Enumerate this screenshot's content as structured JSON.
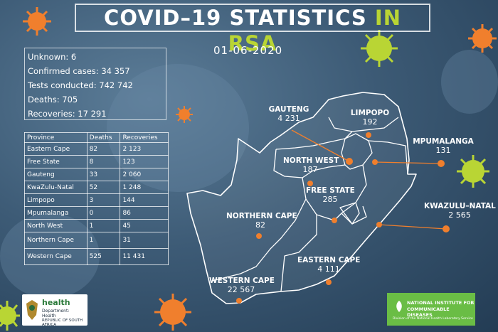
{
  "title": {
    "main": "COVID–19 STATISTICS",
    "highlight": "IN RSA"
  },
  "date": "01-06-2020",
  "summary": {
    "unknown": "Unknown: 6",
    "confirmed": "Confirmed cases: 34 357",
    "tests": "Tests conducted: 742 742",
    "deaths": "Deaths: 705",
    "recoveries": "Recoveries:  17 291"
  },
  "table": {
    "headers": [
      "Province",
      "Deaths",
      "Recoveries"
    ],
    "rows": [
      [
        "Eastern Cape",
        "82",
        "2 123"
      ],
      [
        "Free State",
        "8",
        "123"
      ],
      [
        "Gauteng",
        "33",
        "2 060"
      ],
      [
        "KwaZulu-Natal",
        "52",
        "1 248"
      ],
      [
        "Limpopo",
        "3",
        "144"
      ],
      [
        "Mpumalanga",
        "0",
        "86"
      ],
      [
        "North West",
        "1",
        "45"
      ],
      [
        "Northern Cape",
        "1",
        "31"
      ],
      [
        "Western Cape",
        "525",
        "11 431"
      ]
    ]
  },
  "map": {
    "gauteng": {
      "name": "GAUTENG",
      "cases": "4 231"
    },
    "limpopo": {
      "name": "LIMPOPO",
      "cases": "192"
    },
    "mpumalanga": {
      "name": "MPUMALANGA",
      "cases": "131"
    },
    "north_west": {
      "name": "NORTH WEST",
      "cases": "187"
    },
    "free_state": {
      "name": "FREE STATE",
      "cases": "285"
    },
    "kzn": {
      "name": "KWAZULU–NATAL",
      "cases": "2 565"
    },
    "northern_cape": {
      "name": "NORTHERN CAPE",
      "cases": "82"
    },
    "eastern_cape": {
      "name": "EASTERN CAPE",
      "cases": "4 111"
    },
    "western_cape": {
      "name": "WESTERN CAPE",
      "cases": "22 567"
    }
  },
  "logos": {
    "health": {
      "name": "health",
      "dept": "Department:",
      "dept_name": "Health",
      "country": "REPUBLIC OF SOUTH AFRICA"
    },
    "nicd": {
      "line1": "NATIONAL INSTITUTE FOR",
      "line2": "COMMUNICABLE DISEASES",
      "sub": "Division of the National Health Laboratory Service"
    }
  },
  "colors": {
    "accent": "#b9d534",
    "marker": "#f07f2d",
    "background": "#3d5b76",
    "nicd_green": "#6abd45"
  }
}
